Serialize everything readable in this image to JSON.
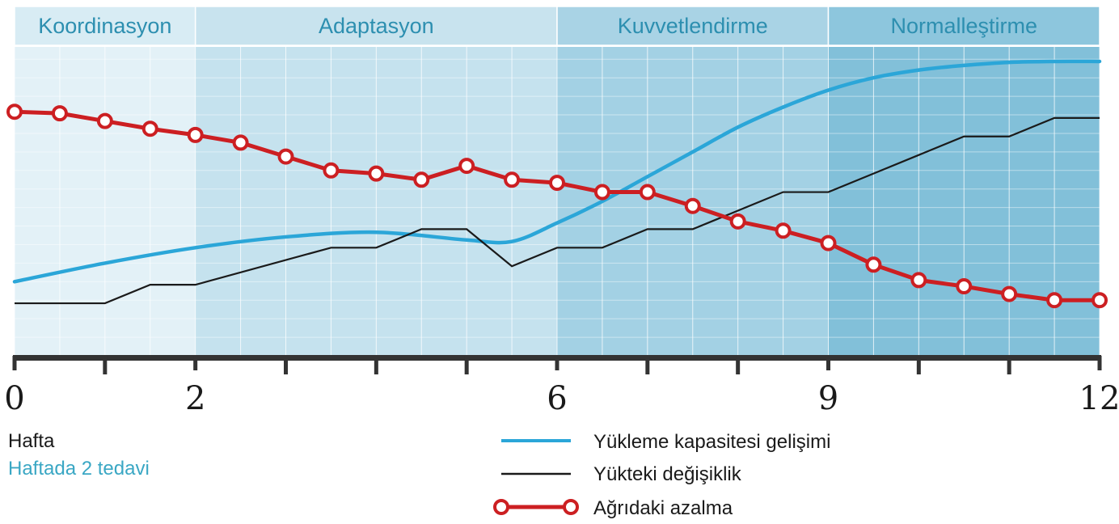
{
  "chart_data": {
    "type": "line",
    "phases": [
      {
        "label": "Koordinasyon",
        "from": 0,
        "to": 2,
        "color": "#e3f1f7",
        "header_color": "#d8ecf4"
      },
      {
        "label": "Adaptasyon",
        "from": 2,
        "to": 6,
        "color": "#c5e2ee",
        "header_color": "#c8e3ee"
      },
      {
        "label": "Kuvvetlendirme",
        "from": 6,
        "to": 9,
        "color": "#a3d1e4",
        "header_color": "#a9d3e5"
      },
      {
        "label": "Normalleştirme",
        "from": 9,
        "to": 12,
        "color": "#82c0d9",
        "header_color": "#8dc6dd"
      }
    ],
    "x_ticks": [
      0,
      2,
      6,
      9,
      12
    ],
    "x_tick_labels": [
      "0",
      "2",
      "6",
      "9",
      "12"
    ],
    "xlim": [
      0,
      12
    ],
    "ylim": [
      0,
      100
    ],
    "grid": true,
    "series": [
      {
        "name": "Yükleme kapasitesi gelişimi",
        "color": "#2ba6d8",
        "x": [
          0,
          1,
          2,
          3,
          4,
          5,
          5.5,
          6,
          6.5,
          7,
          7.5,
          8,
          8.5,
          9,
          9.5,
          10,
          10.5,
          11,
          11.5,
          12
        ],
        "values": [
          24,
          30,
          35,
          38.5,
          40,
          37.5,
          37,
          43,
          50,
          58,
          66,
          74,
          80.5,
          86,
          90,
          92.5,
          94,
          95,
          95.3,
          95.3
        ]
      },
      {
        "name": "Yükteki değişiklik",
        "color": "#1a1a1a",
        "x": [
          0,
          1,
          1.5,
          2,
          3.5,
          4,
          4.5,
          5,
          5.5,
          6,
          6.5,
          7,
          7.5,
          8,
          8.5,
          9,
          9.5,
          10,
          10.5,
          11,
          11.5,
          12
        ],
        "values": [
          17,
          17,
          23,
          23,
          35,
          35,
          41,
          41,
          29,
          35,
          35,
          41,
          41,
          47,
          53,
          53,
          59,
          65,
          71,
          71,
          77,
          77
        ]
      },
      {
        "name": "Ağrıdaki azalma",
        "color": "#cc1f22",
        "x": [
          0,
          0.5,
          1,
          1.5,
          2,
          2.5,
          3,
          3.5,
          4,
          4.5,
          5,
          5.5,
          6,
          6.5,
          7,
          7.5,
          8,
          8.5,
          9,
          9.5,
          10,
          10.5,
          11,
          11.5,
          12
        ],
        "values": [
          79,
          78.5,
          76,
          73.5,
          71.5,
          69,
          64.5,
          60,
          59,
          57,
          61.5,
          57,
          56,
          53,
          53,
          48.5,
          43.5,
          40.5,
          36.5,
          29.5,
          24.5,
          22.5,
          20,
          18,
          18
        ]
      }
    ],
    "xlabel_lines": [
      "Hafta",
      "Haftada 2 tedavi"
    ],
    "legend_position": "bottom-right"
  }
}
